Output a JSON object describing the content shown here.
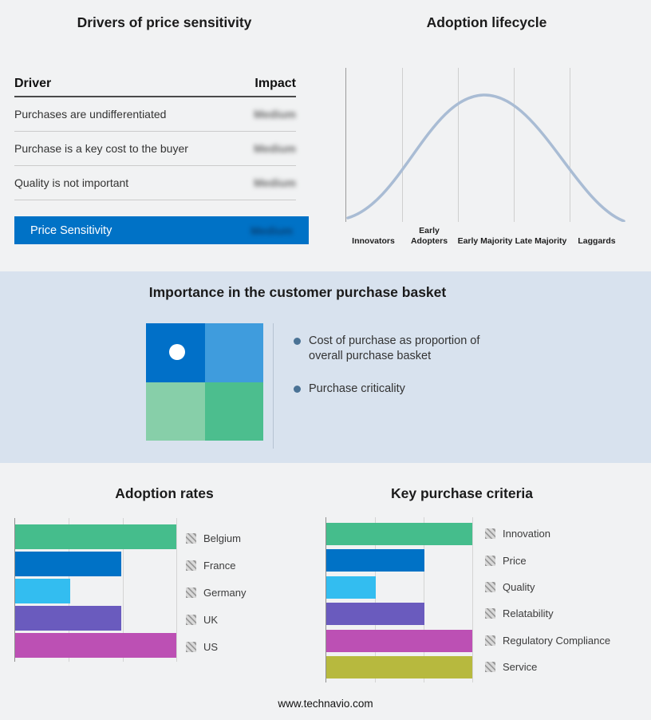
{
  "colors": {
    "blue": "#0072C6",
    "light_blue": "#3F9CDD",
    "green": "#45BD8C",
    "light_green": "#87CFA9",
    "cyan": "#33BDF0",
    "purple": "#6A5BBE",
    "magenta": "#BC50B4",
    "olive": "#B7B93E",
    "curve": "#A9BCD4",
    "band_bg": "#D8E2EE"
  },
  "drivers_panel": {
    "title": "Drivers of price sensitivity",
    "columns": {
      "driver": "Driver",
      "impact": "Impact"
    },
    "rows": [
      {
        "driver": "Purchases are undifferentiated",
        "impact": "Medium"
      },
      {
        "driver": "Purchase is a key cost to the buyer",
        "impact": "Medium"
      },
      {
        "driver": "Quality is not important",
        "impact": "Medium"
      }
    ],
    "highlight": {
      "driver": "Price Sensitivity",
      "impact": "Medium"
    },
    "impact_values_obscured": true
  },
  "lifecycle_panel": {
    "title": "Adoption lifecycle"
  },
  "basket_panel": {
    "title": "Importance in the customer purchase basket",
    "bullets": [
      "Cost of purchase as proportion of overall purchase basket",
      "Purchase criticality"
    ],
    "quadrant_colors": {
      "top_left": "#0170C8",
      "top_right": "#3F9CDD",
      "bottom_left": "#87CFA9",
      "bottom_right": "#4CBE8E"
    }
  },
  "adoption_panel": {
    "title": "Adoption rates"
  },
  "criteria_panel": {
    "title": "Key purchase criteria"
  },
  "footer": {
    "url": "www.technavio.com"
  },
  "chart_data": [
    {
      "type": "line",
      "title": "Adoption lifecycle",
      "categories": [
        "Innovators",
        "Early Adopters",
        "Early Majority",
        "Late Majority",
        "Laggards"
      ],
      "values": [
        12,
        62,
        100,
        62,
        12
      ],
      "ylabel": "",
      "xlabel": "",
      "notes": "bell-shaped adoption curve, unlabeled y-axis, vertical gridlines between stages",
      "line_color": "#A9BCD4",
      "grid": true,
      "legend_position": "none"
    },
    {
      "type": "bar",
      "title": "Adoption rates",
      "orientation": "horizontal",
      "categories": [
        "Belgium",
        "France",
        "Germany",
        "UK",
        "US"
      ],
      "values": [
        100,
        66,
        34,
        66,
        100
      ],
      "unit": "relative % (axis unlabeled, estimated from gridlines at thirds)",
      "xlim": [
        0,
        100
      ],
      "colors": [
        "#45BD8C",
        "#0072C6",
        "#33BDF0",
        "#6A5BBE",
        "#BC50B4"
      ],
      "grid": true,
      "legend_position": "right"
    },
    {
      "type": "bar",
      "title": "Key purchase criteria",
      "orientation": "horizontal",
      "categories": [
        "Innovation",
        "Price",
        "Quality",
        "Relatability",
        "Regulatory Compliance",
        "Service"
      ],
      "values": [
        100,
        67,
        34,
        67,
        100,
        100
      ],
      "unit": "relative % (axis unlabeled, estimated from gridlines at thirds)",
      "xlim": [
        0,
        100
      ],
      "colors": [
        "#45BD8C",
        "#0072C6",
        "#33BDF0",
        "#6A5BBE",
        "#BC50B4",
        "#B7B93E"
      ],
      "grid": true,
      "legend_position": "right"
    }
  ]
}
